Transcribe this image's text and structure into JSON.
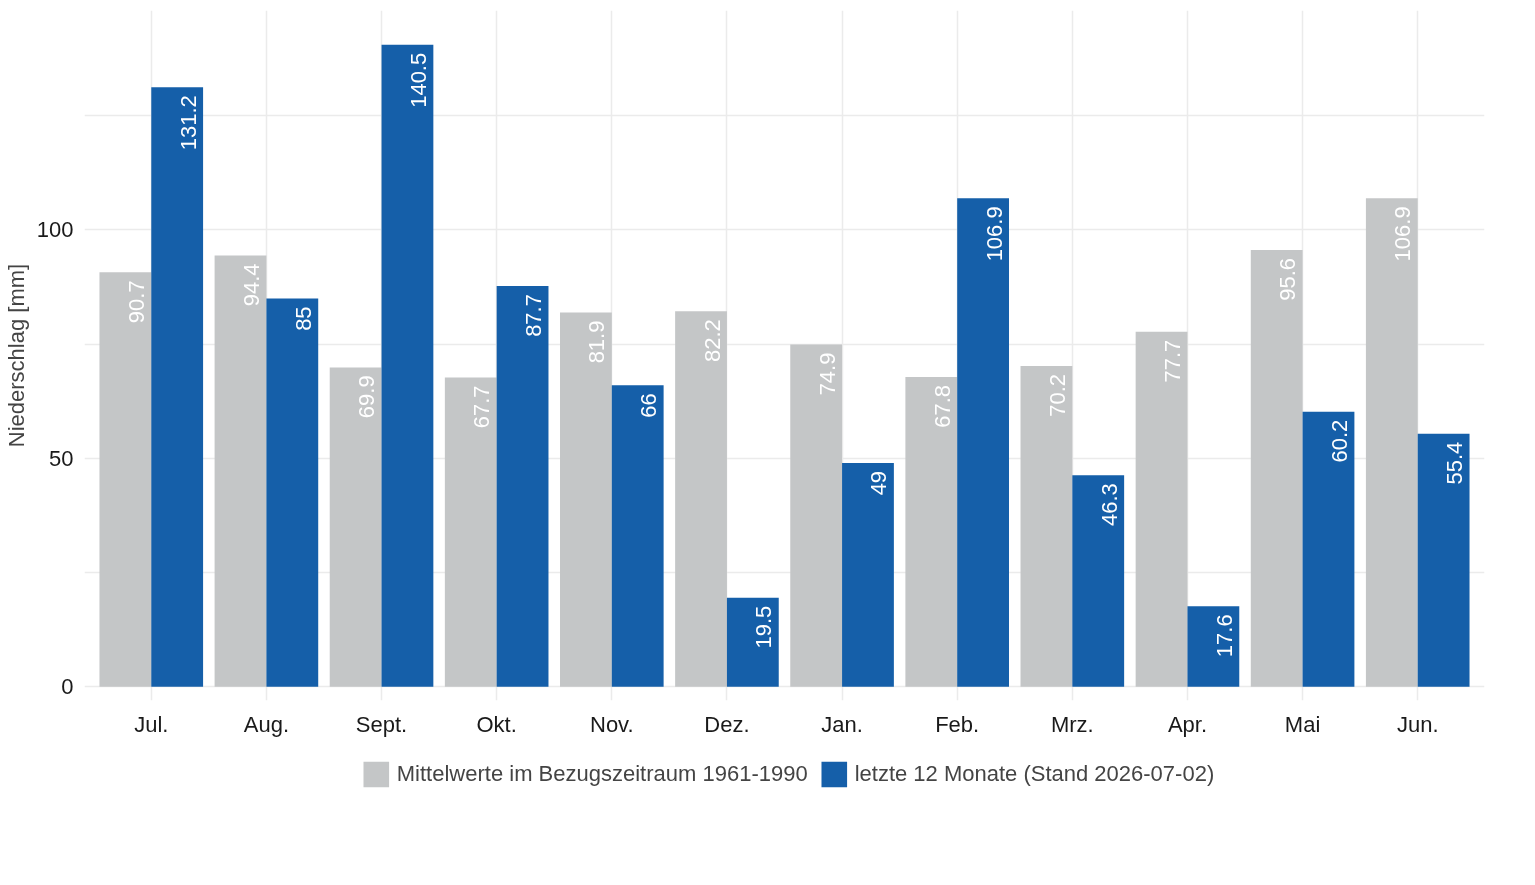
{
  "chart_data": {
    "type": "bar",
    "ylabel": "Niederschlag [mm]",
    "categories": [
      "Jul.",
      "Aug.",
      "Sept.",
      "Okt.",
      "Nov.",
      "Dez.",
      "Jan.",
      "Feb.",
      "Mrz.",
      "Apr.",
      "Mai",
      "Jun."
    ],
    "series": [
      {
        "name": "Mittelwerte im Bezugszeitraum 1961-1990",
        "color": "#c4c6c7",
        "values": [
          90.7,
          94.4,
          69.9,
          67.7,
          81.9,
          82.2,
          74.9,
          67.8,
          70.2,
          77.7,
          95.6,
          106.9
        ]
      },
      {
        "name": "letzte 12 Monate (Stand 2026-07-02)",
        "color": "#155fa9",
        "values": [
          131.2,
          85,
          140.5,
          87.7,
          66,
          19.5,
          49,
          106.9,
          46.3,
          17.6,
          60.2,
          55.4
        ]
      }
    ],
    "ylim": [
      -3,
      148
    ],
    "yticks": [
      0,
      {
        "value": 25,
        "label": null
      },
      50,
      {
        "value": 75,
        "label": null
      },
      100,
      {
        "value": 125,
        "label": null
      }
    ],
    "grid": true,
    "legend": "bottom",
    "data_labels": true
  }
}
